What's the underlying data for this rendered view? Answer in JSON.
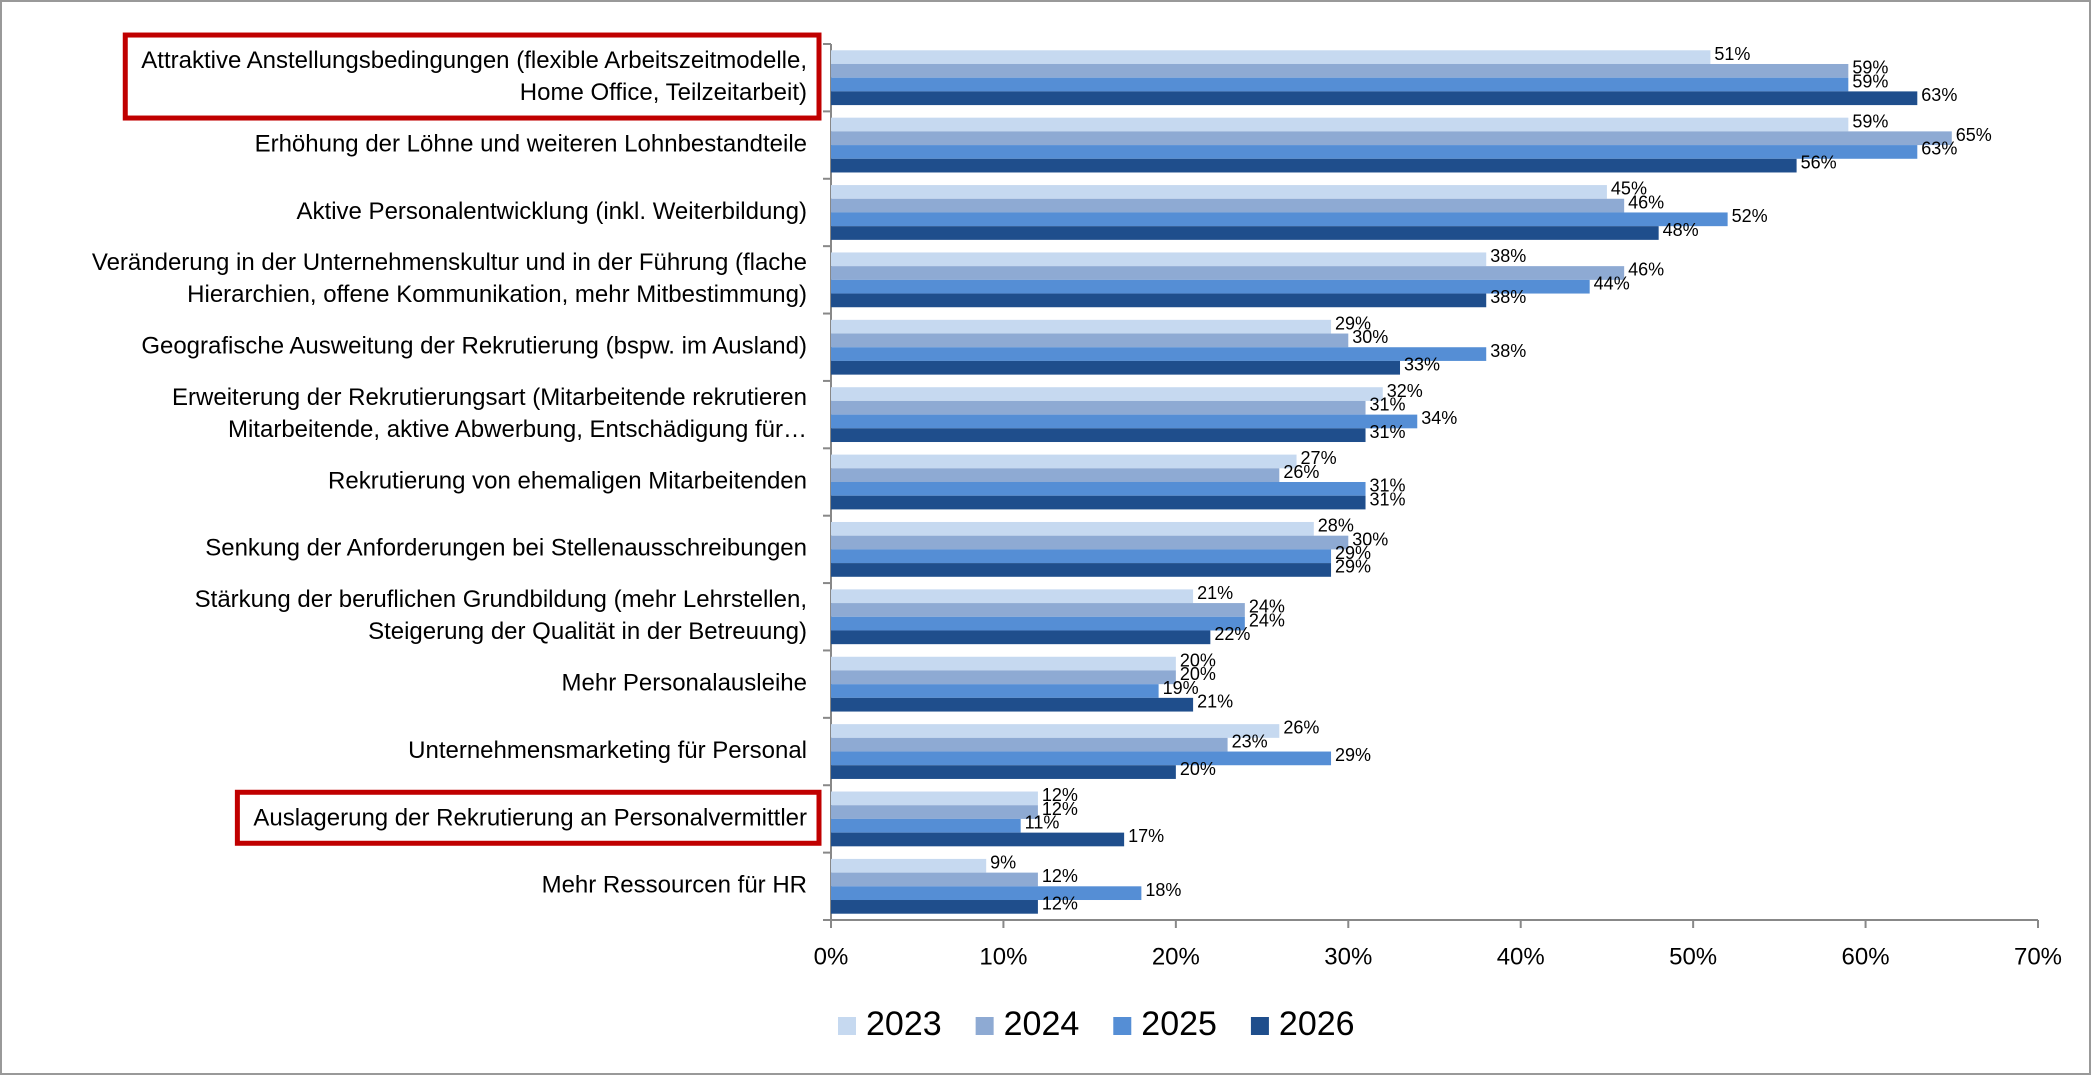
{
  "chart_data": {
    "type": "barh",
    "categories": [
      [
        "Attraktive Anstellungsbedingungen (flexible Arbeitszeitmodelle,",
        "Home Office, Teilzeitarbeit)"
      ],
      [
        "Erhöhung der Löhne und weiteren Lohnbestandteile"
      ],
      [
        "Aktive Personalentwicklung (inkl. Weiterbildung)"
      ],
      [
        "Veränderung in der Unternehmenskultur und in der Führung (flache",
        "Hierarchien, offene Kommunikation, mehr Mitbestimmung)"
      ],
      [
        "Geografische Ausweitung der Rekrutierung (bspw. im Ausland)"
      ],
      [
        "Erweiterung der Rekrutierungsart (Mitarbeitende rekrutieren",
        "Mitarbeitende, aktive Abwerbung, Entschädigung für…"
      ],
      [
        "Rekrutierung von ehemaligen Mitarbeitenden"
      ],
      [
        "Senkung der Anforderungen bei Stellenausschreibungen"
      ],
      [
        "Stärkung der beruflichen Grundbildung (mehr Lehrstellen,",
        "Steigerung der Qualität in der Betreuung)"
      ],
      [
        "Mehr Personalausleihe"
      ],
      [
        "Unternehmensmarketing für Personal"
      ],
      [
        "Auslagerung der Rekrutierung an Personalvermittler"
      ],
      [
        "Mehr Ressourcen für HR"
      ]
    ],
    "series": [
      {
        "name": "2023",
        "color": "#c6d9f0",
        "values": [
          51,
          59,
          45,
          38,
          29,
          32,
          27,
          28,
          21,
          20,
          26,
          12,
          9
        ],
        "value_labels": [
          "51%",
          "59%",
          "45%",
          "38%",
          "29%",
          "32%",
          "27%",
          "28%",
          "21%",
          "20%",
          "26%",
          "12%",
          "9%"
        ]
      },
      {
        "name": "2024",
        "color": "#8eaad3",
        "values": [
          59,
          65,
          46,
          46,
          30,
          31,
          26,
          30,
          24,
          20,
          23,
          12,
          12
        ],
        "value_labels": [
          "59%",
          "65%",
          "46%",
          "46%",
          "30%",
          "31%",
          "26%",
          "30%",
          "24%",
          "20%",
          "23%",
          "12%",
          "12%"
        ]
      },
      {
        "name": "2025",
        "color": "#558ed5",
        "values": [
          59,
          63,
          52,
          44,
          38,
          34,
          31,
          29,
          24,
          19,
          29,
          11,
          18
        ],
        "value_labels": [
          "59%",
          "63%",
          "52%",
          "44%",
          "38%",
          "34%",
          "31%",
          "29%",
          "24%",
          "19%",
          "29%",
          "11%",
          "18%"
        ]
      },
      {
        "name": "2026",
        "color": "#1f4e8c",
        "values": [
          63,
          56,
          48,
          38,
          33,
          31,
          31,
          29,
          22,
          21,
          20,
          17,
          12
        ],
        "value_labels": [
          "63%",
          "56%",
          "48%",
          "38%",
          "33%",
          "31%",
          "31%",
          "29%",
          "22%",
          "21%",
          "20%",
          "17%",
          "12%"
        ]
      }
    ],
    "xlim": [
      0,
      70
    ],
    "xticks": [
      {
        "value": 0,
        "label": "0%"
      },
      {
        "value": 10,
        "label": "10%"
      },
      {
        "value": 20,
        "label": "20%"
      },
      {
        "value": 30,
        "label": "30%"
      },
      {
        "value": 40,
        "label": "40%"
      },
      {
        "value": 50,
        "label": "50%"
      },
      {
        "value": 60,
        "label": "60%"
      },
      {
        "value": 70,
        "label": "70%"
      }
    ],
    "highlighted_categories": [
      0,
      11
    ],
    "highlight_color": "#c00000",
    "legend": "bottom"
  }
}
